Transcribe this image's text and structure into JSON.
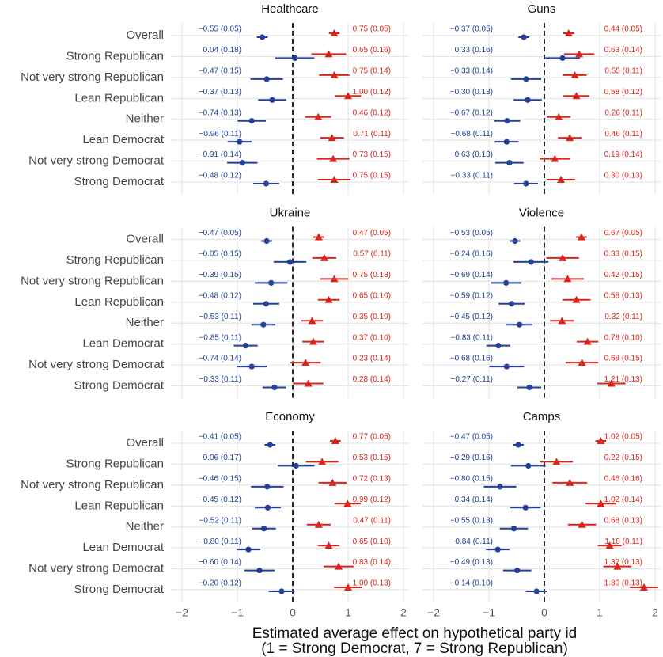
{
  "chart_data": {
    "type": "forest",
    "x_label": [
      "Estimated average effect on hypothetical party id",
      "(1 = Strong Democrat, 7 = Strong Republican)"
    ],
    "xlim": [
      -2.2,
      2.1
    ],
    "xticks": [
      {
        "value": -2,
        "label": "−2"
      },
      {
        "value": -1,
        "label": "−1"
      },
      0,
      1,
      2
    ],
    "vline": 0,
    "grid": true,
    "categories": [
      "Overall",
      "Strong Republican",
      "Not very strong Republican",
      "Lean Republican",
      "Neither",
      "Lean Democrat",
      "Not very strong Democrat",
      "Strong Democrat"
    ],
    "panels": [
      {
        "title": "Healthcare",
        "series": [
          {
            "color": "#24409a",
            "marker": "circle",
            "values": [
              -0.55,
              0.04,
              -0.47,
              -0.37,
              -0.74,
              -0.96,
              -0.91,
              -0.48
            ],
            "se": [
              0.05,
              0.18,
              0.15,
              0.13,
              0.13,
              0.11,
              0.14,
              0.12
            ],
            "value_labels": [
              "−0.55 (0.05)",
              "0.04 (0.18)",
              "−0.47 (0.15)",
              "−0.37 (0.13)",
              "−0.74 (0.13)",
              "−0.96 (0.11)",
              "−0.91 (0.14)",
              "−0.48 (0.12)"
            ]
          },
          {
            "color": "#d9261c",
            "marker": "triangle",
            "values": [
              0.75,
              0.65,
              0.75,
              1.0,
              0.46,
              0.71,
              0.73,
              0.75
            ],
            "se": [
              0.05,
              0.16,
              0.14,
              0.12,
              0.12,
              0.11,
              0.15,
              0.15
            ],
            "value_labels": [
              "0.75 (0.05)",
              "0.65 (0.16)",
              "0.75 (0.14)",
              "1.00 (0.12)",
              "0.46 (0.12)",
              "0.71 (0.11)",
              "0.73 (0.15)",
              "0.75 (0.15)"
            ]
          }
        ]
      },
      {
        "title": "Guns",
        "series": [
          {
            "color": "#24409a",
            "marker": "circle",
            "values": [
              -0.37,
              0.33,
              -0.33,
              -0.3,
              -0.67,
              -0.68,
              -0.63,
              -0.33
            ],
            "se": [
              0.05,
              0.16,
              0.14,
              0.13,
              0.12,
              0.11,
              0.13,
              0.11
            ],
            "value_labels": [
              "−0.37 (0.05)",
              "0.33 (0.16)",
              "−0.33 (0.14)",
              "−0.30 (0.13)",
              "−0.67 (0.12)",
              "−0.68 (0.11)",
              "−0.63 (0.13)",
              "−0.33 (0.11)"
            ]
          },
          {
            "color": "#d9261c",
            "marker": "triangle",
            "values": [
              0.44,
              0.63,
              0.55,
              0.58,
              0.26,
              0.46,
              0.19,
              0.3
            ],
            "se": [
              0.05,
              0.14,
              0.11,
              0.12,
              0.11,
              0.11,
              0.14,
              0.13
            ],
            "value_labels": [
              "0.44 (0.05)",
              "0.63 (0.14)",
              "0.55 (0.11)",
              "0.58 (0.12)",
              "0.26 (0.11)",
              "0.46 (0.11)",
              "0.19 (0.14)",
              "0.30 (0.13)"
            ]
          }
        ]
      },
      {
        "title": "Ukraine",
        "series": [
          {
            "color": "#24409a",
            "marker": "circle",
            "values": [
              -0.47,
              -0.05,
              -0.39,
              -0.48,
              -0.53,
              -0.85,
              -0.74,
              -0.33
            ],
            "se": [
              0.05,
              0.15,
              0.15,
              0.12,
              0.11,
              0.11,
              0.14,
              0.11
            ],
            "value_labels": [
              "−0.47 (0.05)",
              "−0.05 (0.15)",
              "−0.39 (0.15)",
              "−0.48 (0.12)",
              "−0.53 (0.11)",
              "−0.85 (0.11)",
              "−0.74 (0.14)",
              "−0.33 (0.11)"
            ]
          },
          {
            "color": "#d9261c",
            "marker": "triangle",
            "values": [
              0.47,
              0.57,
              0.75,
              0.65,
              0.35,
              0.37,
              0.23,
              0.28
            ],
            "se": [
              0.05,
              0.11,
              0.13,
              0.1,
              0.1,
              0.1,
              0.14,
              0.14
            ],
            "value_labels": [
              "0.47 (0.05)",
              "0.57 (0.11)",
              "0.75 (0.13)",
              "0.65 (0.10)",
              "0.35 (0.10)",
              "0.37 (0.10)",
              "0.23 (0.14)",
              "0.28 (0.14)"
            ]
          }
        ]
      },
      {
        "title": "Violence",
        "series": [
          {
            "color": "#24409a",
            "marker": "circle",
            "values": [
              -0.53,
              -0.24,
              -0.69,
              -0.59,
              -0.45,
              -0.83,
              -0.68,
              -0.27
            ],
            "se": [
              0.05,
              0.16,
              0.14,
              0.12,
              0.12,
              0.11,
              0.16,
              0.11
            ],
            "value_labels": [
              "−0.53 (0.05)",
              "−0.24 (0.16)",
              "−0.69 (0.14)",
              "−0.59 (0.12)",
              "−0.45 (0.12)",
              "−0.83 (0.11)",
              "−0.68 (0.16)",
              "−0.27 (0.11)"
            ]
          },
          {
            "color": "#d9261c",
            "marker": "triangle",
            "values": [
              0.67,
              0.33,
              0.42,
              0.58,
              0.32,
              0.78,
              0.68,
              1.21
            ],
            "se": [
              0.05,
              0.15,
              0.15,
              0.13,
              0.11,
              0.1,
              0.15,
              0.13
            ],
            "value_labels": [
              "0.67 (0.05)",
              "0.33 (0.15)",
              "0.42 (0.15)",
              "0.58 (0.13)",
              "0.32 (0.11)",
              "0.78 (0.10)",
              "0.68 (0.15)",
              "1.21 (0.13)"
            ]
          }
        ]
      },
      {
        "title": "Economy",
        "series": [
          {
            "color": "#24409a",
            "marker": "circle",
            "values": [
              -0.41,
              0.06,
              -0.46,
              -0.45,
              -0.52,
              -0.8,
              -0.6,
              -0.2
            ],
            "se": [
              0.05,
              0.17,
              0.15,
              0.12,
              0.11,
              0.11,
              0.14,
              0.12
            ],
            "value_labels": [
              "−0.41 (0.05)",
              "0.06 (0.17)",
              "−0.46 (0.15)",
              "−0.45 (0.12)",
              "−0.52 (0.11)",
              "−0.80 (0.11)",
              "−0.60 (0.14)",
              "−0.20 (0.12)"
            ]
          },
          {
            "color": "#d9261c",
            "marker": "triangle",
            "values": [
              0.77,
              0.53,
              0.72,
              0.99,
              0.47,
              0.65,
              0.83,
              1.0
            ],
            "se": [
              0.05,
              0.15,
              0.13,
              0.12,
              0.11,
              0.1,
              0.14,
              0.13
            ],
            "value_labels": [
              "0.77 (0.05)",
              "0.53 (0.15)",
              "0.72 (0.13)",
              "0.99 (0.12)",
              "0.47 (0.11)",
              "0.65 (0.10)",
              "0.83 (0.14)",
              "1.00 (0.13)"
            ]
          }
        ]
      },
      {
        "title": "Camps",
        "series": [
          {
            "color": "#24409a",
            "marker": "circle",
            "values": [
              -0.47,
              -0.29,
              -0.8,
              -0.34,
              -0.55,
              -0.84,
              -0.49,
              -0.14
            ],
            "se": [
              0.05,
              0.16,
              0.15,
              0.14,
              0.13,
              0.11,
              0.13,
              0.1
            ],
            "value_labels": [
              "−0.47 (0.05)",
              "−0.29 (0.16)",
              "−0.80 (0.15)",
              "−0.34 (0.14)",
              "−0.55 (0.13)",
              "−0.84 (0.11)",
              "−0.49 (0.13)",
              "−0.14 (0.10)"
            ]
          },
          {
            "color": "#d9261c",
            "marker": "triangle",
            "values": [
              1.02,
              0.22,
              0.46,
              1.02,
              0.68,
              1.18,
              1.32,
              1.8
            ],
            "se": [
              0.05,
              0.15,
              0.16,
              0.14,
              0.13,
              0.11,
              0.13,
              0.13
            ],
            "value_labels": [
              "1.02 (0.05)",
              "0.22 (0.15)",
              "0.46 (0.16)",
              "1.02 (0.14)",
              "0.68 (0.13)",
              "1.18 (0.11)",
              "1.32 (0.13)",
              "1.80 (0.13)"
            ]
          }
        ]
      }
    ]
  }
}
